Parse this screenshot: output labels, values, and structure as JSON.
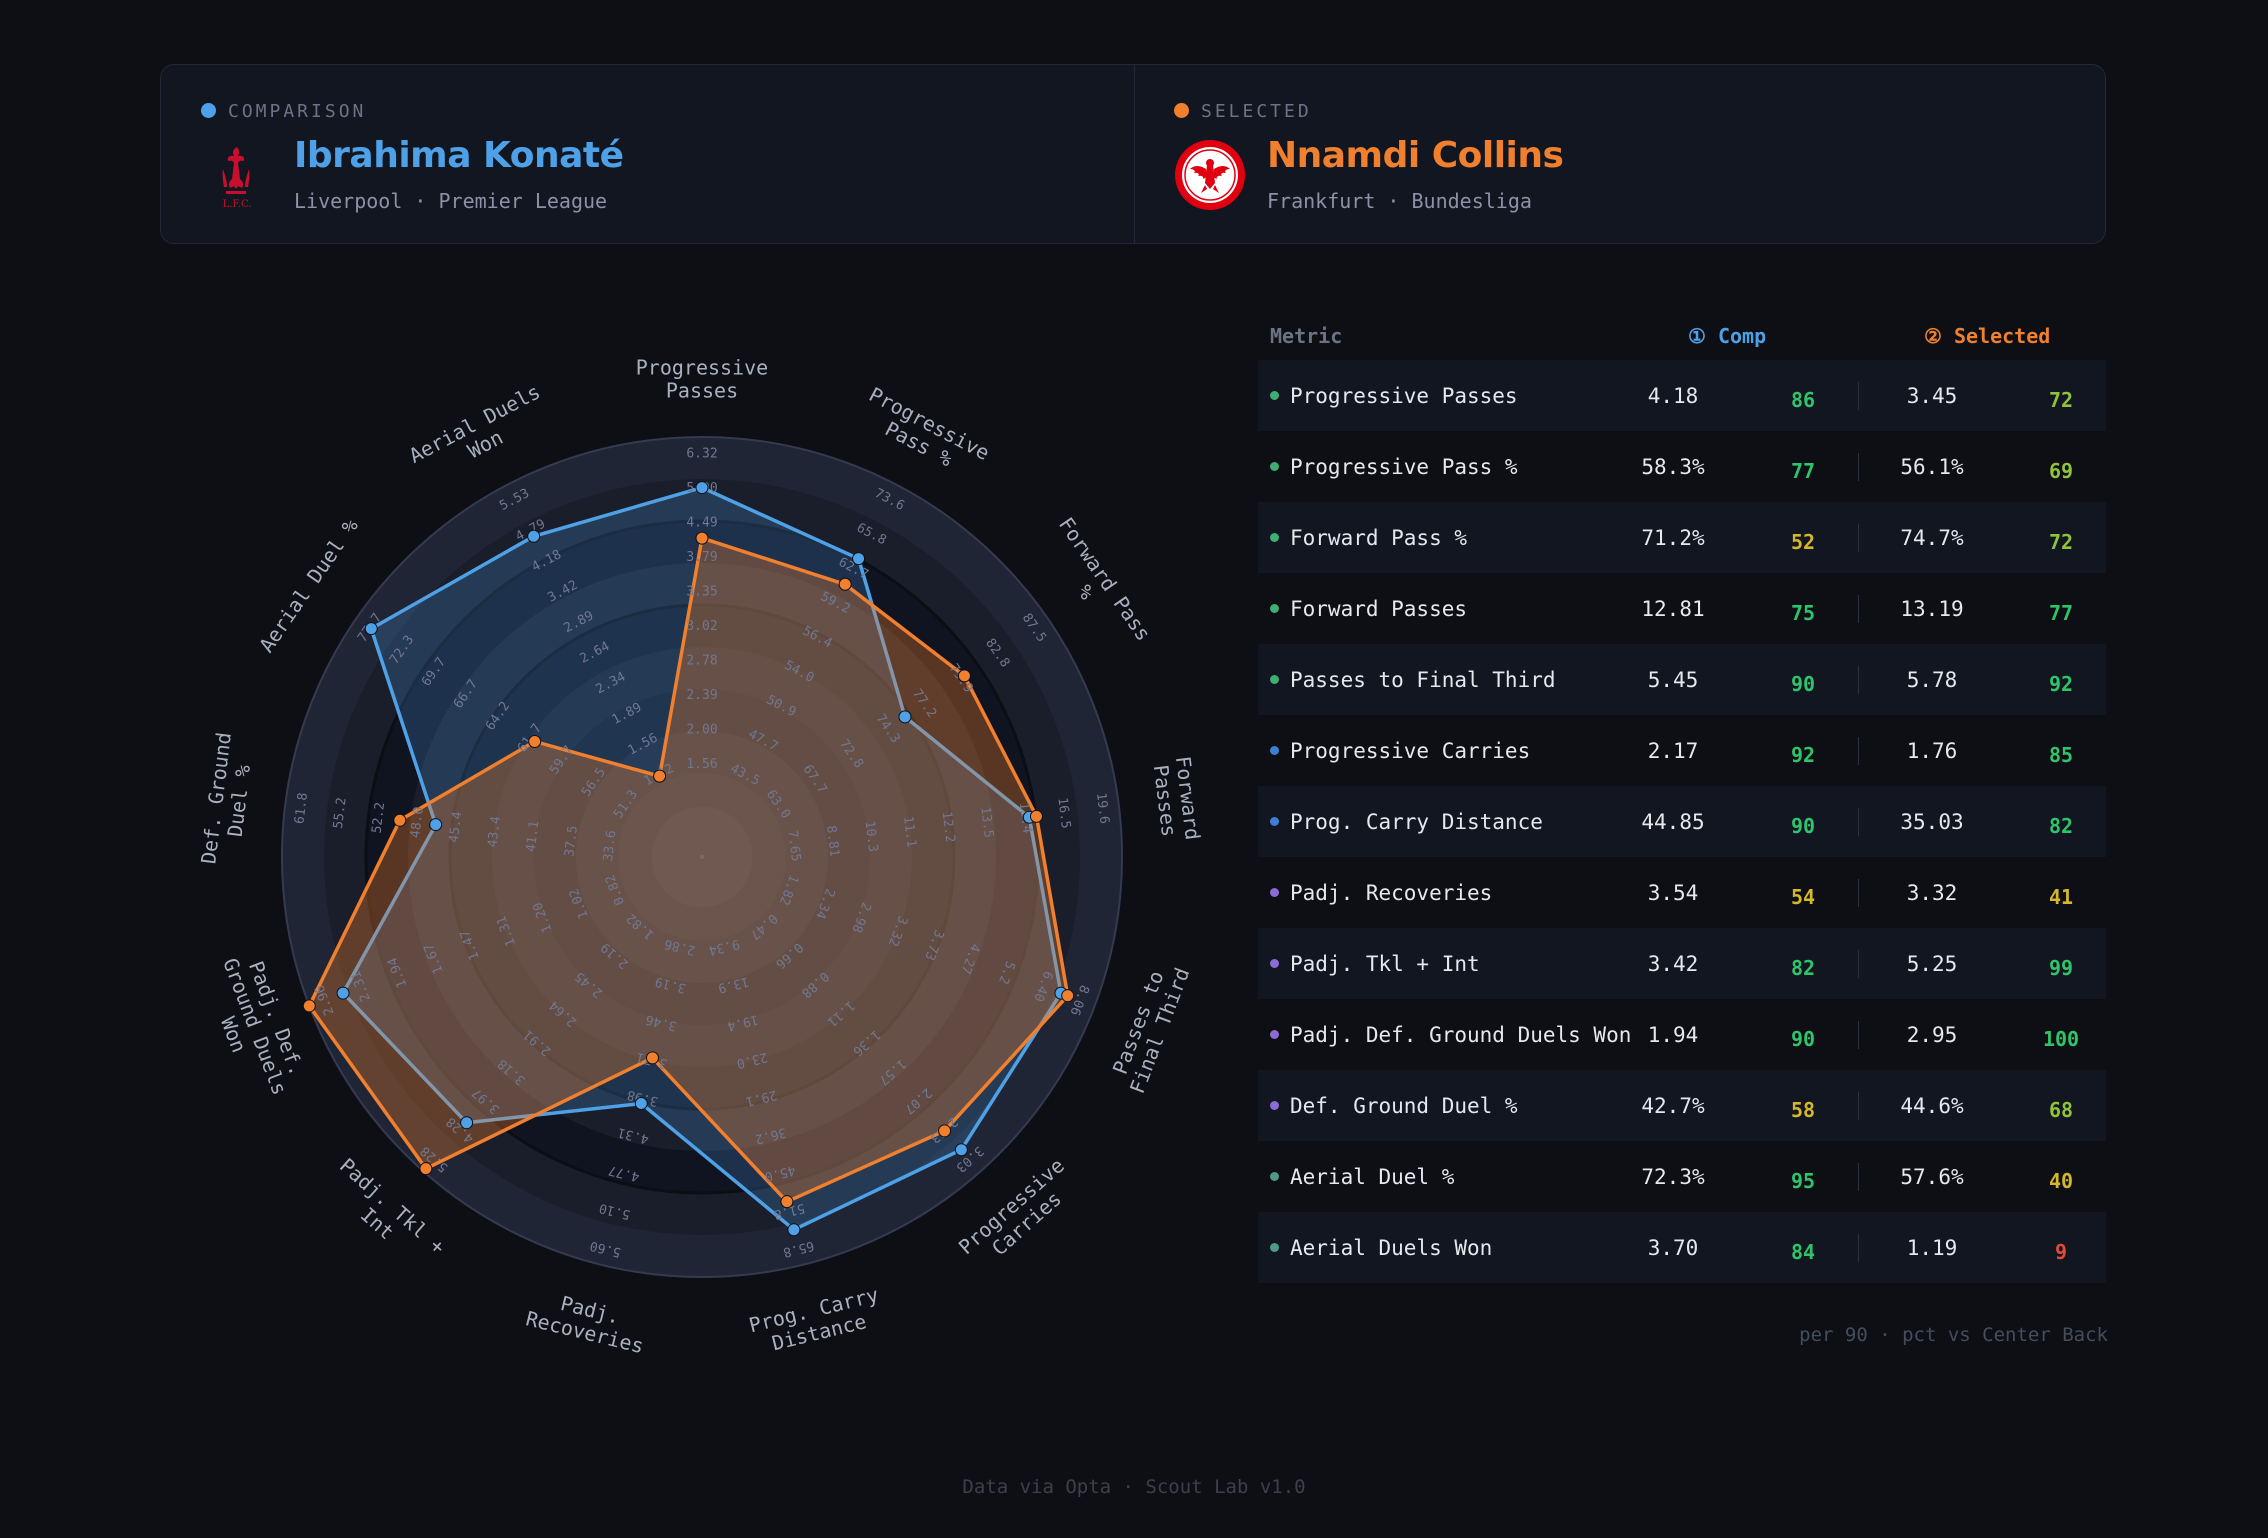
{
  "comparison": {
    "tag": "COMPARISON",
    "name": "Ibrahima Konaté",
    "club": "Liverpool · Premier League",
    "crest_text": "L.F.C.",
    "color": "#4ea1e6"
  },
  "selected": {
    "tag": "SELECTED",
    "name": "Nnamdi Collins",
    "club": "Frankfurt · Bundesliga",
    "color": "#f07f2e"
  },
  "table": {
    "header_metric": "Metric",
    "header_comp": "① Comp",
    "header_selected": "② Selected",
    "rows": [
      {
        "metric": "Progressive Passes",
        "category": "passing",
        "comp_value": "4.18",
        "comp_pct": "86",
        "sel_value": "3.45",
        "sel_pct": "72"
      },
      {
        "metric": "Progressive Pass %",
        "category": "passing",
        "comp_value": "58.3%",
        "comp_pct": "77",
        "sel_value": "56.1%",
        "sel_pct": "69"
      },
      {
        "metric": "Forward Pass %",
        "category": "passing",
        "comp_value": "71.2%",
        "comp_pct": "52",
        "sel_value": "74.7%",
        "sel_pct": "72"
      },
      {
        "metric": "Forward Passes",
        "category": "passing",
        "comp_value": "12.81",
        "comp_pct": "75",
        "sel_value": "13.19",
        "sel_pct": "77"
      },
      {
        "metric": "Passes to Final Third",
        "category": "passing",
        "comp_value": "5.45",
        "comp_pct": "90",
        "sel_value": "5.78",
        "sel_pct": "92"
      },
      {
        "metric": "Progressive Carries",
        "category": "carrying",
        "comp_value": "2.17",
        "comp_pct": "92",
        "sel_value": "1.76",
        "sel_pct": "85"
      },
      {
        "metric": "Prog. Carry Distance",
        "category": "carrying",
        "comp_value": "44.85",
        "comp_pct": "90",
        "sel_value": "35.03",
        "sel_pct": "82"
      },
      {
        "metric": "Padj. Recoveries",
        "category": "defending",
        "comp_value": "3.54",
        "comp_pct": "54",
        "sel_value": "3.32",
        "sel_pct": "41"
      },
      {
        "metric": "Padj. Tkl + Int",
        "category": "defending",
        "comp_value": "3.42",
        "comp_pct": "82",
        "sel_value": "5.25",
        "sel_pct": "99"
      },
      {
        "metric": "Padj. Def. Ground Duels Won",
        "category": "defending",
        "comp_value": "1.94",
        "comp_pct": "90",
        "sel_value": "2.95",
        "sel_pct": "100"
      },
      {
        "metric": "Def. Ground Duel %",
        "category": "defending",
        "comp_value": "42.7%",
        "comp_pct": "58",
        "sel_value": "44.6%",
        "sel_pct": "68"
      },
      {
        "metric": "Aerial Duel %",
        "category": "aerial",
        "comp_value": "72.3%",
        "comp_pct": "95",
        "sel_value": "57.6%",
        "sel_pct": "40"
      },
      {
        "metric": "Aerial Duels Won",
        "category": "aerial",
        "comp_value": "3.70",
        "comp_pct": "84",
        "sel_value": "1.19",
        "sel_pct": "9"
      }
    ],
    "note": "per 90 · pct vs Center Back"
  },
  "footer": "Data via Opta · Scout Lab v1.0",
  "colors": {
    "comp": "#4ea1e6",
    "selected": "#f07f2e",
    "passing": "#3fae72",
    "carrying": "#3e7fd6",
    "defending": "#8c6bd6",
    "aerial": "#4f9a86",
    "pct_high": "#2fc46a",
    "pct_mid_high": "#8fc43a",
    "pct_mid": "#d4b72a",
    "pct_low": "#e04b3a"
  },
  "chart_data": {
    "type": "radar",
    "series": [
      {
        "name": "Ibrahima Konaté",
        "values": [
          86,
          77,
          52,
          75,
          90,
          92,
          90,
          54,
          82,
          90,
          58,
          95,
          84
        ]
      },
      {
        "name": "Nnamdi Collins",
        "values": [
          72,
          69,
          72,
          77,
          92,
          85,
          82,
          41,
          99,
          100,
          68,
          40,
          9
        ]
      }
    ],
    "axes": [
      {
        "label": "Progressive\nPasses",
        "ticks": [
          "1.56",
          "2.00",
          "2.39",
          "2.78",
          "3.02",
          "3.35",
          "3.79",
          "4.49",
          "5.00",
          "6.32"
        ]
      },
      {
        "label": "Progressive\nPass %",
        "ticks": [
          "43.5",
          "47.7",
          "50.9",
          "54.0",
          "56.4",
          "59.2",
          "62.7",
          "65.8",
          "73.6"
        ]
      },
      {
        "label": "Forward Pass\n%",
        "ticks": [
          "63.0",
          "67.7",
          "72.8",
          "74.3",
          "77.2",
          "79.9",
          "82.8",
          "87.5"
        ]
      },
      {
        "label": "Forward\nPasses",
        "ticks": [
          "7.65",
          "8.81",
          "10.3",
          "11.1",
          "12.2",
          "13.5",
          "15.4",
          "16.5",
          "19.6"
        ]
      },
      {
        "label": "Passes to\nFinal Third",
        "ticks": [
          "1.82",
          "2.34",
          "2.98",
          "3.32",
          "3.73",
          "4.27",
          "5.2",
          "6.40",
          "8.06"
        ]
      },
      {
        "label": "Progressive\nCarries",
        "ticks": [
          "0.47",
          "0.66",
          "0.88",
          "1.11",
          "1.36",
          "1.57",
          "2.07",
          "2.43",
          "3.03"
        ]
      },
      {
        "label": "Prog. Carry\nDistance",
        "ticks": [
          "9.34",
          "13.9",
          "19.4",
          "23.0",
          "29.1",
          "36.2",
          "45.0",
          "51.8",
          "65.8"
        ]
      },
      {
        "label": "Padj.\nRecoveries",
        "ticks": [
          "2.86",
          "3.19",
          "3.46",
          "3.71",
          "3.98",
          "4.31",
          "4.77",
          "5.10",
          "5.60"
        ]
      },
      {
        "label": "Padj. Tkl +\nInt",
        "ticks": [
          "1.82",
          "2.19",
          "2.45",
          "2.64",
          "2.91",
          "3.18",
          "3.97",
          "4.28",
          "5.28"
        ]
      },
      {
        "label": "Padj. Def.\nGround Duels\nWon",
        "ticks": [
          "0.82",
          "1.02",
          "1.20",
          "1.31",
          "1.47",
          "1.67",
          "1.94",
          "2.31",
          "2.96"
        ]
      },
      {
        "label": "Def. Ground\nDuel %",
        "ticks": [
          "33.6",
          "37.5",
          "41.1",
          "43.4",
          "45.4",
          "48.0",
          "52.2",
          "55.2",
          "61.8"
        ]
      },
      {
        "label": "Aerial Duel %",
        "ticks": [
          "51.3",
          "56.5",
          "59.7",
          "61.7",
          "64.2",
          "66.7",
          "69.7",
          "72.3",
          "77.7"
        ]
      },
      {
        "label": "Aerial Duels\nWon",
        "ticks": [
          "1.12",
          "1.56",
          "1.89",
          "2.34",
          "2.64",
          "2.89",
          "3.42",
          "4.18",
          "4.79",
          "5.53"
        ]
      }
    ],
    "rlim": [
      0,
      100
    ],
    "grid": true
  }
}
